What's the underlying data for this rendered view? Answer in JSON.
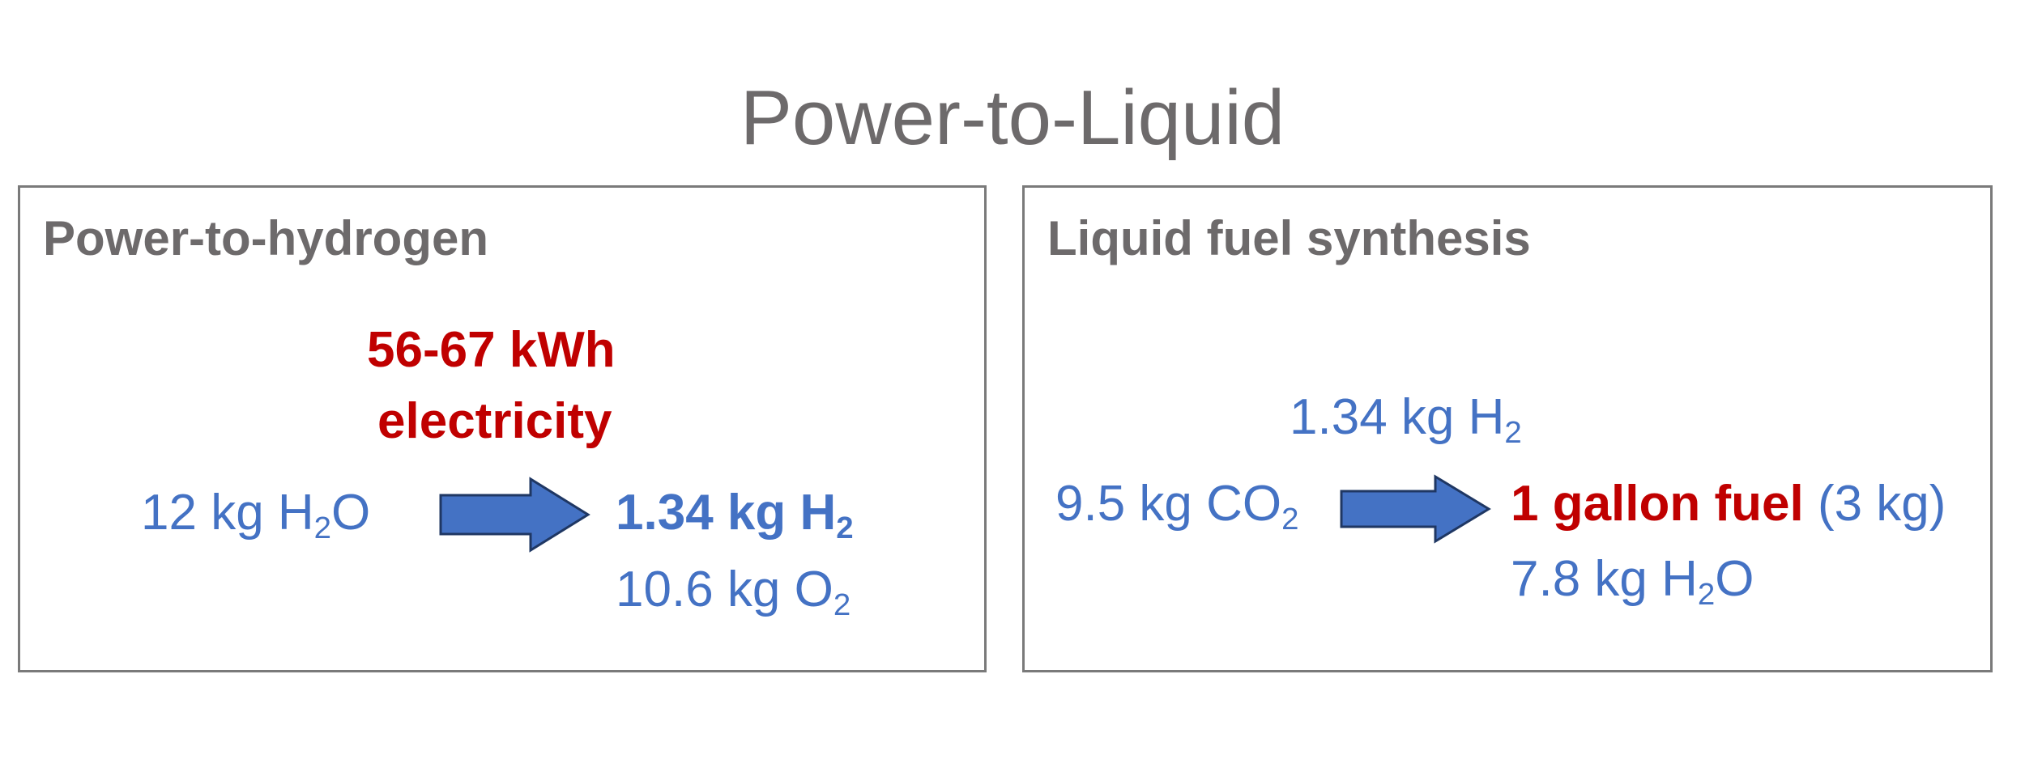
{
  "title": "Power-to-Liquid",
  "colors": {
    "title_gray": "#6d6a6b",
    "blue": "#4472c4",
    "red": "#c00000",
    "arrow_fill": "#4472c4",
    "arrow_stroke": "#1f3763"
  },
  "power_to_hydrogen": {
    "heading": "Power-to-hydrogen",
    "energy_line1": "56-67 kWh",
    "energy_line2": "electricity",
    "input": {
      "prefix": "12 kg H",
      "sub": "2",
      "suffix": "O"
    },
    "output_h2": {
      "prefix": "1.34 kg H",
      "sub": "2"
    },
    "output_o2": {
      "prefix": "10.6 kg O",
      "sub": "2"
    }
  },
  "liquid_fuel_synthesis": {
    "heading": "Liquid fuel synthesis",
    "input_h2": {
      "prefix": "1.34 kg H",
      "sub": "2"
    },
    "input_co2": {
      "prefix": "9.5 kg CO",
      "sub": "2"
    },
    "output_fuel": "1 gallon fuel",
    "output_fuel_mass": " (3 kg)",
    "output_water": {
      "prefix": "7.8 kg H",
      "sub": "2",
      "suffix": "O"
    }
  }
}
